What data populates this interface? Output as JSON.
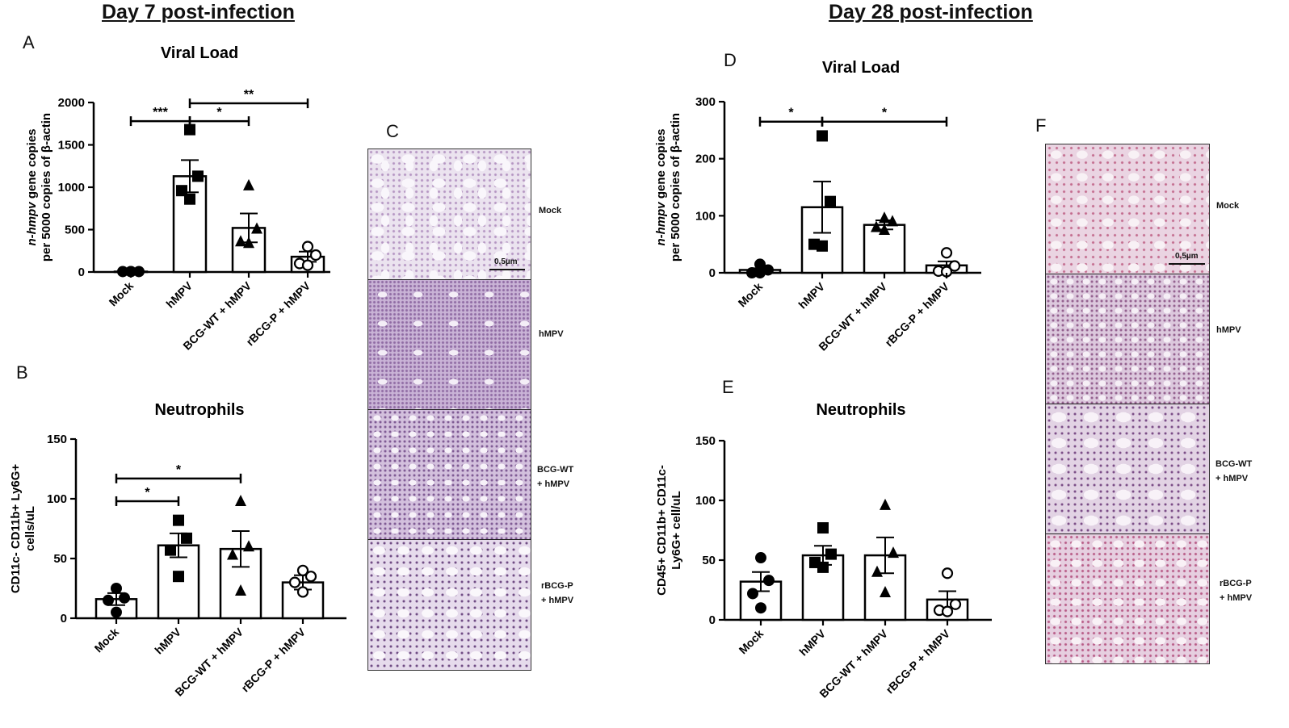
{
  "headings": {
    "day7": "Day 7 post-infection",
    "day28": "Day 28 post-infection"
  },
  "panel_letters": {
    "A": "A",
    "B": "B",
    "C": "C",
    "D": "D",
    "E": "E",
    "F": "F"
  },
  "micrographs": {
    "C": {
      "labels": [
        "Mock",
        "hMPV",
        "BCG-WT\n+ hMPV",
        "rBCG-P\n+ hMPV"
      ],
      "scale": "0,5µm"
    },
    "F": {
      "labels": [
        "Mock",
        "hMPV",
        "BCG-WT\n+ hMPV",
        "rBCG-P\n+ hMPV"
      ],
      "scale": "0,5µm"
    }
  },
  "colors": {
    "bar_fill": "#ffffff",
    "ink": "#000000"
  },
  "chart_data": [
    {
      "id": "A",
      "type": "bar",
      "title": "Viral Load",
      "ylabel_lines": [
        [
          {
            "t": "n-hmpv",
            "i": true
          },
          {
            "t": " gene copies",
            "i": false
          }
        ],
        [
          {
            "t": "per 5000 copies of ",
            "i": false
          },
          {
            "t": "β",
            "i": false
          },
          {
            "t": "-actin",
            "i": false
          }
        ]
      ],
      "categories": [
        "Mock",
        "hMPV",
        "BCG-WT + hMPV",
        "rBCG-P + hMPV"
      ],
      "values": [
        5,
        1130,
        520,
        180
      ],
      "errors": [
        3,
        190,
        170,
        60
      ],
      "markers": [
        "circle",
        "square",
        "triangle",
        "open-circle"
      ],
      "points": [
        [
          5,
          5,
          5,
          5
        ],
        [
          1680,
          1130,
          960,
          860
        ],
        [
          1020,
          510,
          360,
          340
        ],
        [
          300,
          200,
          100,
          80
        ]
      ],
      "ylim": [
        0,
        2000
      ],
      "yticks": [
        0,
        500,
        1000,
        1500,
        2000
      ],
      "significance": [
        {
          "from": 0,
          "to": 1,
          "label": "***",
          "y": 1780
        },
        {
          "from": 1,
          "to": 2,
          "label": "*",
          "y": 1780
        },
        {
          "from": 1,
          "to": 3,
          "label": "**",
          "y": 1990
        }
      ]
    },
    {
      "id": "B",
      "type": "bar",
      "title": "Neutrophils",
      "ylabel_lines": [
        [
          {
            "t": "CD11c- CD11b+ Ly6G+",
            "i": false
          }
        ],
        [
          {
            "t": "cells/uL",
            "i": false
          }
        ]
      ],
      "categories": [
        "Mock",
        "hMPV",
        "BCG-WT + hMPV",
        "rBCG-P + hMPV"
      ],
      "values": [
        16,
        61,
        58,
        30
      ],
      "errors": [
        5,
        10,
        15,
        6
      ],
      "markers": [
        "circle",
        "square",
        "triangle",
        "open-circle"
      ],
      "points": [
        [
          25,
          15,
          17,
          5
        ],
        [
          82,
          67,
          57,
          35
        ],
        [
          98,
          60,
          53,
          23
        ],
        [
          40,
          35,
          30,
          22
        ]
      ],
      "ylim": [
        0,
        150
      ],
      "yticks": [
        0,
        50,
        100,
        150
      ],
      "significance": [
        {
          "from": 0,
          "to": 1,
          "label": "*",
          "y": 98
        },
        {
          "from": 0,
          "to": 2,
          "label": "*",
          "y": 117
        }
      ]
    },
    {
      "id": "D",
      "type": "bar",
      "title": "Viral Load",
      "ylabel_lines": [
        [
          {
            "t": "n-hmpv",
            "i": true
          },
          {
            "t": " gene copies",
            "i": false
          }
        ],
        [
          {
            "t": "per 5000 copies of ",
            "i": false
          },
          {
            "t": "β",
            "i": false
          },
          {
            "t": "-actin",
            "i": false
          }
        ]
      ],
      "categories": [
        "Mock",
        "hMPV",
        "BCG-WT + hMPV",
        "rBCG-P + hMPV"
      ],
      "values": [
        5,
        115,
        84,
        13
      ],
      "errors": [
        3,
        45,
        8,
        7
      ],
      "markers": [
        "circle",
        "square",
        "triangle",
        "open-circle"
      ],
      "points": [
        [
          15,
          5,
          0,
          0
        ],
        [
          240,
          125,
          50,
          47
        ],
        [
          96,
          90,
          80,
          75
        ],
        [
          35,
          12,
          3,
          2
        ]
      ],
      "ylim": [
        0,
        300
      ],
      "yticks": [
        0,
        100,
        200,
        300
      ],
      "significance": [
        {
          "from": 0,
          "to": 1,
          "label": "*",
          "y": 265
        },
        {
          "from": 1,
          "to": 3,
          "label": "*",
          "y": 265
        }
      ]
    },
    {
      "id": "E",
      "type": "bar",
      "title": "Neutrophils",
      "ylabel_lines": [
        [
          {
            "t": "CD45+ CD11b+ CD11c-",
            "i": false
          }
        ],
        [
          {
            "t": "Ly6G+ cell/uL",
            "i": false
          }
        ]
      ],
      "categories": [
        "Mock",
        "hMPV",
        "BCG-WT + hMPV",
        "rBCG-P + hMPV"
      ],
      "values": [
        32,
        54,
        54,
        17
      ],
      "errors": [
        8,
        8,
        15,
        7
      ],
      "markers": [
        "circle",
        "square",
        "triangle",
        "open-circle"
      ],
      "points": [
        [
          52,
          33,
          22,
          10
        ],
        [
          77,
          55,
          48,
          44
        ],
        [
          96,
          56,
          40,
          23
        ],
        [
          39,
          13,
          8,
          7
        ]
      ],
      "ylim": [
        0,
        150
      ],
      "yticks": [
        0,
        50,
        100,
        150
      ],
      "significance": []
    }
  ]
}
